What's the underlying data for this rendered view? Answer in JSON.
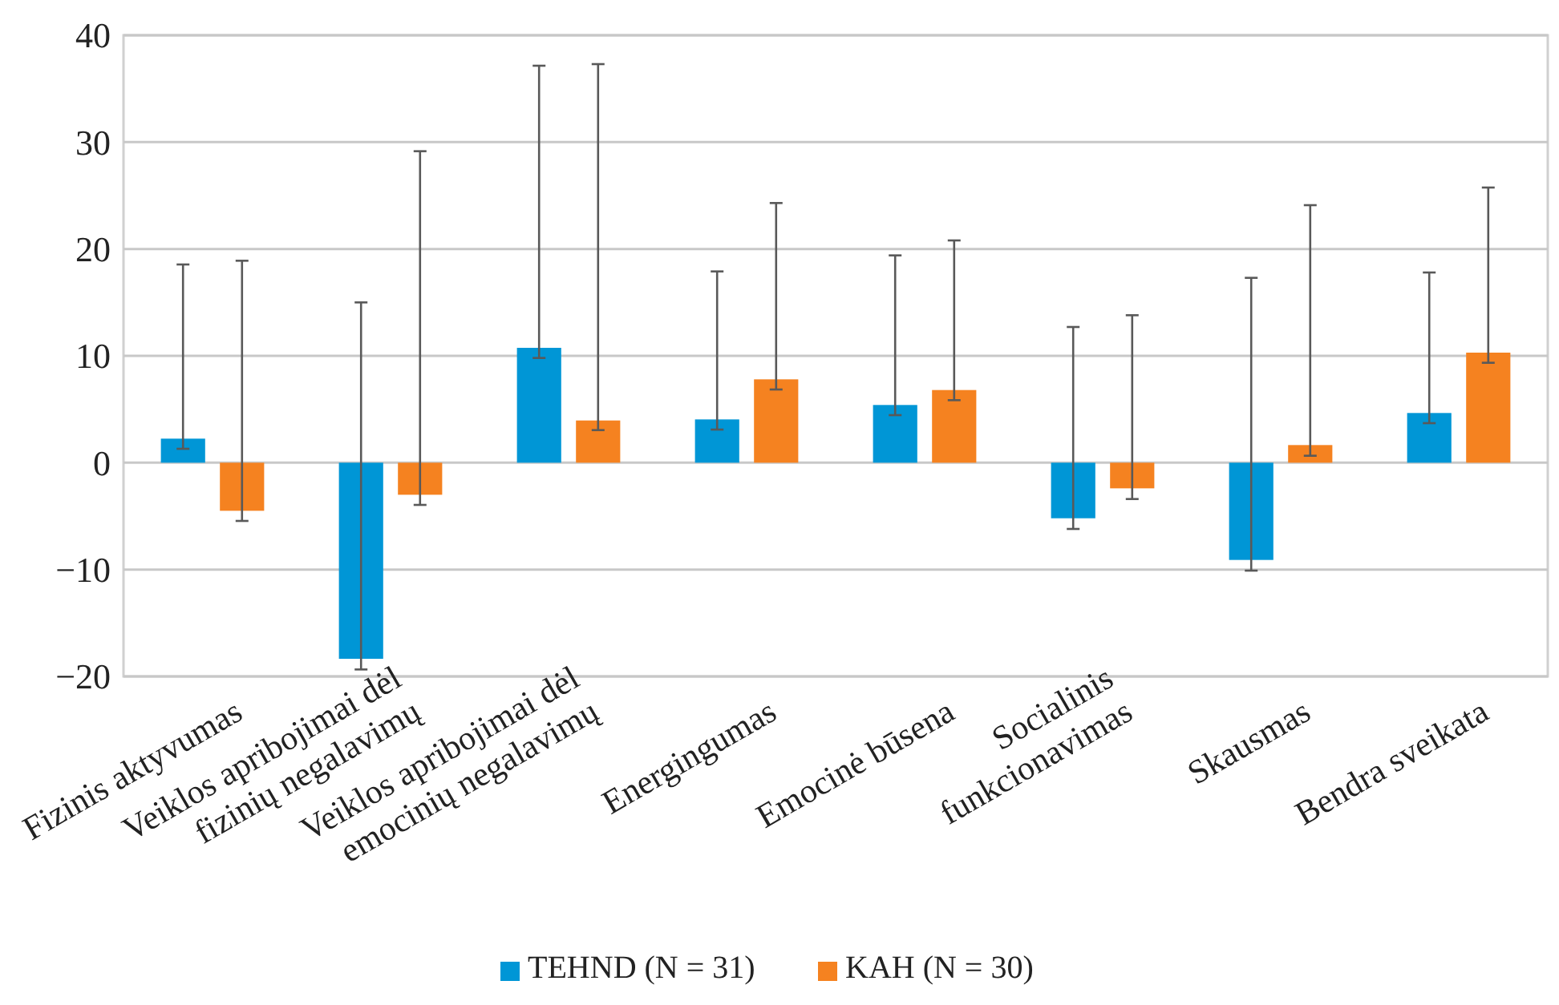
{
  "chart_data": {
    "type": "bar",
    "categories": [
      "Fizinis aktyvumas",
      "Veiklos apribojimai dėl\nfizinių negalavimų",
      "Veiklos apribojimai dėl\nemocinių negalavimų",
      "Energingumas",
      "Emocinė būsena",
      "Socialinis\nfunkcionavimas",
      "Skausmas",
      "Bendra sveikata"
    ],
    "series": [
      {
        "name": "TEHND (N = 31)",
        "color": "#0096d6",
        "values": [
          2.25,
          -18.35,
          10.75,
          4.05,
          5.4,
          -5.2,
          -9.1,
          4.65
        ],
        "errors": [
          [
            1.3,
            18.55
          ],
          [
            -19.35,
            15.0
          ],
          [
            9.8,
            37.15
          ],
          [
            3.1,
            17.9
          ],
          [
            4.45,
            19.4
          ],
          [
            -6.2,
            12.7
          ],
          [
            -10.1,
            17.3
          ],
          [
            3.7,
            17.8
          ]
        ]
      },
      {
        "name": "KAH (N = 30)",
        "color": "#f58220",
        "values": [
          -4.5,
          -3.0,
          3.95,
          7.8,
          6.8,
          -2.4,
          1.65,
          10.3
        ],
        "errors": [
          [
            -5.45,
            18.9
          ],
          [
            -3.95,
            29.15
          ],
          [
            3.05,
            37.3
          ],
          [
            6.85,
            24.3
          ],
          [
            5.85,
            20.8
          ],
          [
            -3.4,
            13.8
          ],
          [
            0.65,
            24.1
          ],
          [
            9.35,
            25.75
          ]
        ]
      }
    ],
    "ylim": [
      -20,
      40
    ],
    "yticks": [
      {
        "value": -20,
        "label": "−20"
      },
      {
        "value": -10,
        "label": "−10"
      },
      0,
      10,
      20,
      30,
      40
    ],
    "grid": "y",
    "legend": "bottom"
  }
}
